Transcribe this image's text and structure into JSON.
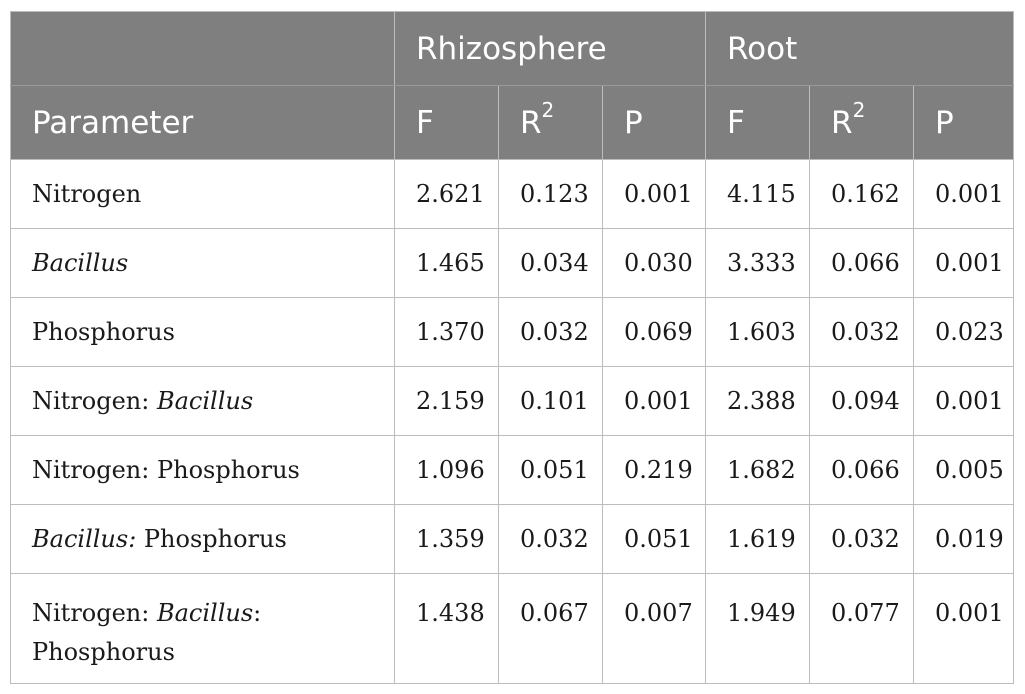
{
  "table": {
    "group_headers": {
      "blank": "",
      "rhizosphere": "Rhizosphere",
      "root": "Root"
    },
    "columns": {
      "parameter": "Parameter",
      "f": "F",
      "r": "R",
      "r_sup": "2",
      "p": "P"
    },
    "rows": [
      {
        "parts": [
          "Nitrogen"
        ],
        "values": [
          "2.621",
          "0.123",
          "0.001",
          "4.115",
          "0.162",
          "0.001"
        ]
      },
      {
        "parts": [
          "Bacillus"
        ],
        "values": [
          "1.465",
          "0.034",
          "0.030",
          "3.333",
          "0.066",
          "0.001"
        ]
      },
      {
        "parts": [
          "Phosphorus"
        ],
        "values": [
          "1.370",
          "0.032",
          "0.069",
          "1.603",
          "0.032",
          "0.023"
        ]
      },
      {
        "parts": [
          "Nitrogen: ",
          "Bacillus"
        ],
        "values": [
          "2.159",
          "0.101",
          "0.001",
          "2.388",
          "0.094",
          "0.001"
        ]
      },
      {
        "parts": [
          "Nitrogen: Phosphorus"
        ],
        "values": [
          "1.096",
          "0.051",
          "0.219",
          "1.682",
          "0.066",
          "0.005"
        ]
      },
      {
        "parts": [
          "Bacillus:",
          " Phosphorus"
        ],
        "values": [
          "1.359",
          "0.032",
          "0.051",
          "1.619",
          "0.032",
          "0.019"
        ]
      },
      {
        "parts": [
          "Nitrogen: ",
          "Bacillus",
          ":",
          "Phosphorus"
        ],
        "values": [
          "1.438",
          "0.067",
          "0.007",
          "1.949",
          "0.077",
          "0.001"
        ]
      }
    ]
  }
}
